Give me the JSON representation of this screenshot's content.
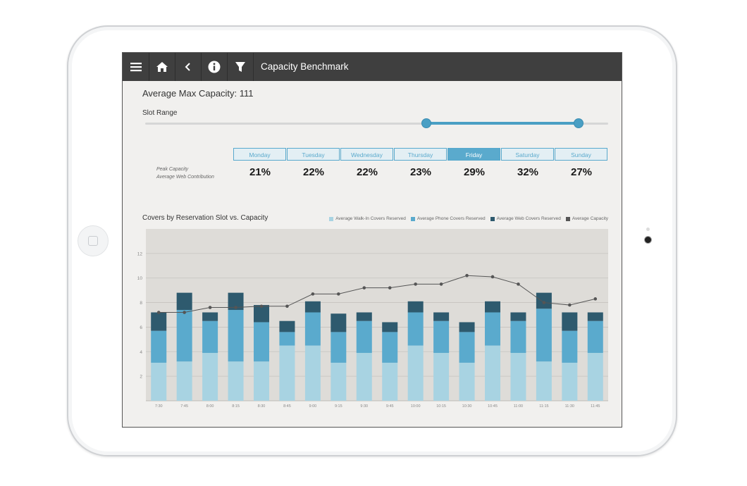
{
  "header": {
    "title": "Capacity Benchmark"
  },
  "summary": {
    "avg_max_capacity": "Average Max Capacity: 111",
    "slot_range_label": "Slot Range"
  },
  "slider": {
    "range_start": 0.61,
    "range_end": 0.94
  },
  "days": [
    {
      "label": "Monday",
      "pct": "21%"
    },
    {
      "label": "Tuesday",
      "pct": "22%"
    },
    {
      "label": "Wednesday",
      "pct": "22%"
    },
    {
      "label": "Thursday",
      "pct": "23%"
    },
    {
      "label": "Friday",
      "pct": "29%",
      "active": true
    },
    {
      "label": "Saturday",
      "pct": "32%"
    },
    {
      "label": "Sunday",
      "pct": "27%"
    }
  ],
  "row_labels": {
    "peak": "Peak Capacity",
    "web": "Average Web Contribution"
  },
  "colors": {
    "walkin": "#a8d3e2",
    "phone": "#5aaacd",
    "web": "#2e5a6e",
    "capacity": "#555555",
    "accent": "#4a9fc4",
    "topbar": "#3f3f3f"
  },
  "chart_data": {
    "type": "bar",
    "title": "Covers by Reservation Slot vs. Capacity",
    "categories": [
      "7:30",
      "7:45",
      "8:00",
      "8:15",
      "8:30",
      "8:45",
      "9:00",
      "9:15",
      "9:30",
      "9:45",
      "10:00",
      "10:15",
      "10:30",
      "10:45",
      "11:00",
      "11:15",
      "11:30",
      "11:45"
    ],
    "ylim": [
      0,
      14
    ],
    "yticks": [
      2,
      4,
      6,
      8,
      10,
      12
    ],
    "series": [
      {
        "name": "Average Walk-In Covers Reserved",
        "values": [
          3.1,
          3.2,
          3.9,
          3.2,
          3.2,
          4.5,
          4.5,
          3.1,
          3.9,
          3.1,
          4.5,
          3.9,
          3.1,
          4.5,
          3.9,
          3.2,
          3.1,
          3.9
        ]
      },
      {
        "name": "Average Phone Covers Reserved",
        "values": [
          2.6,
          4.2,
          2.6,
          4.2,
          3.2,
          1.1,
          2.7,
          2.5,
          2.6,
          2.5,
          2.7,
          2.6,
          2.5,
          2.7,
          2.6,
          4.3,
          2.6,
          2.6
        ]
      },
      {
        "name": "Average Web Covers Reserved",
        "values": [
          1.5,
          1.4,
          0.7,
          1.4,
          1.4,
          0.9,
          0.9,
          1.5,
          0.7,
          0.8,
          0.9,
          0.7,
          0.8,
          0.9,
          0.7,
          1.3,
          1.5,
          0.7
        ]
      },
      {
        "name": "Average Capacity",
        "type": "line",
        "values": [
          7.2,
          7.2,
          7.6,
          7.6,
          7.7,
          7.7,
          8.7,
          8.7,
          9.2,
          9.2,
          9.5,
          9.5,
          10.2,
          10.1,
          9.5,
          8.0,
          7.8,
          8.3
        ]
      }
    ]
  }
}
